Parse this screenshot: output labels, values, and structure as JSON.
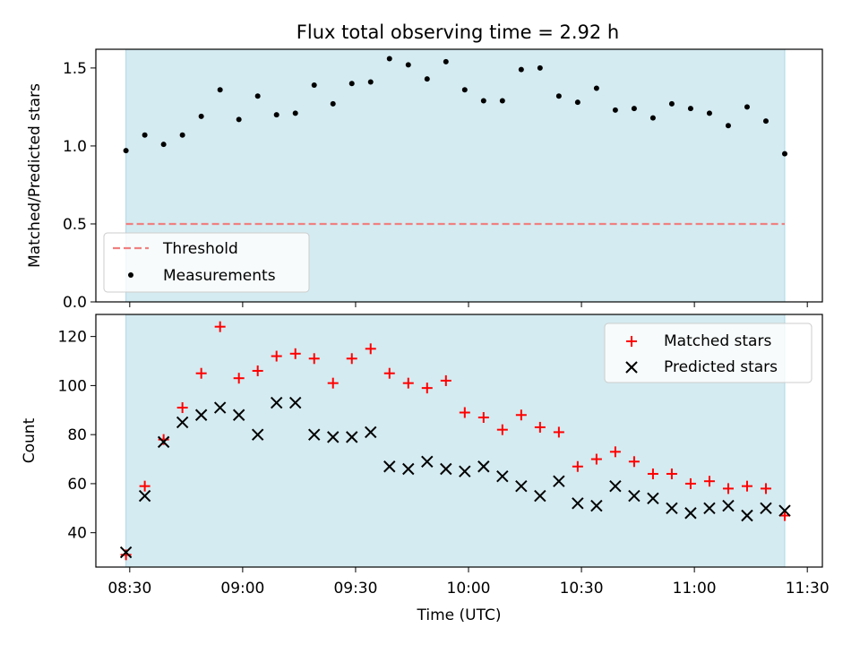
{
  "figure": {
    "title": "Flux total observing time = 2.92 h"
  },
  "chart_data": [
    {
      "type": "scatter",
      "ylabel": "Matched/Predicted stars",
      "xlabel": "",
      "ylim": [
        0,
        1.62
      ],
      "yticks": [
        0,
        0.5,
        1.0,
        1.5
      ],
      "ytick_labels": [
        "0.0",
        "0.5",
        "1.0",
        "1.5"
      ],
      "xlim_min": [
        -8,
        185
      ],
      "shaded_span_min": [
        0,
        175
      ],
      "shade_color": "#d4ebf1",
      "threshold": {
        "name": "Threshold",
        "y": 0.5,
        "x_range_min": [
          0,
          175
        ],
        "color": "#f08080"
      },
      "series": [
        {
          "name": "Measurements",
          "color": "#000000",
          "x_time": [
            "08:29",
            "08:34",
            "08:39",
            "08:44",
            "08:49",
            "08:54",
            "08:59",
            "09:04",
            "09:09",
            "09:14",
            "09:19",
            "09:24",
            "09:29",
            "09:34",
            "09:39",
            "09:44",
            "09:49",
            "09:54",
            "09:59",
            "10:04",
            "10:09",
            "10:14",
            "10:19",
            "10:24",
            "10:29",
            "10:34",
            "10:39",
            "10:44",
            "10:49",
            "10:54",
            "10:59",
            "11:04",
            "11:09",
            "11:14",
            "11:19",
            "11:24"
          ],
          "x_min": [
            0,
            5,
            10,
            15,
            20,
            25,
            30,
            35,
            40,
            45,
            50,
            55,
            60,
            65,
            70,
            75,
            80,
            85,
            90,
            95,
            100,
            105,
            110,
            115,
            120,
            125,
            130,
            135,
            140,
            145,
            150,
            155,
            160,
            165,
            170,
            175
          ],
          "values": [
            0.97,
            1.07,
            1.01,
            1.07,
            1.19,
            1.36,
            1.17,
            1.32,
            1.2,
            1.21,
            1.39,
            1.27,
            1.4,
            1.41,
            1.56,
            1.52,
            1.43,
            1.54,
            1.36,
            1.29,
            1.29,
            1.49,
            1.5,
            1.32,
            1.28,
            1.37,
            1.23,
            1.24,
            1.18,
            1.27,
            1.24,
            1.21,
            1.13,
            1.25,
            1.16,
            0.95
          ]
        }
      ],
      "legend": {
        "placement": "lower-left",
        "entries": [
          "Threshold",
          "Measurements"
        ]
      }
    },
    {
      "type": "scatter",
      "ylabel": "Count",
      "xlabel": "Time (UTC)",
      "ylim": [
        26,
        129
      ],
      "yticks": [
        40,
        60,
        80,
        100,
        120
      ],
      "ytick_labels": [
        "40",
        "60",
        "80",
        "100",
        "120"
      ],
      "xticks_min": [
        1,
        31,
        61,
        91,
        121,
        151,
        181
      ],
      "xtick_labels": [
        "08:30",
        "09:00",
        "09:30",
        "10:00",
        "10:30",
        "11:00",
        "11:30"
      ],
      "xlim_min": [
        -8,
        185
      ],
      "shaded_span_min": [
        0,
        175
      ],
      "shade_color": "#d4ebf1",
      "series": [
        {
          "name": "Matched stars",
          "marker": "+",
          "color": "#ff0000",
          "x_min": [
            0,
            5,
            10,
            15,
            20,
            25,
            30,
            35,
            40,
            45,
            50,
            55,
            60,
            65,
            70,
            75,
            80,
            85,
            90,
            95,
            100,
            105,
            110,
            115,
            120,
            125,
            130,
            135,
            140,
            145,
            150,
            155,
            160,
            165,
            170,
            175
          ],
          "values": [
            31,
            59,
            78,
            91,
            105,
            124,
            103,
            106,
            112,
            113,
            111,
            101,
            111,
            115,
            105,
            101,
            99,
            102,
            89,
            87,
            82,
            88,
            83,
            81,
            67,
            70,
            73,
            69,
            64,
            64,
            60,
            61,
            58,
            59,
            58,
            47
          ]
        },
        {
          "name": "Predicted stars",
          "marker": "x",
          "color": "#000000",
          "x_min": [
            0,
            5,
            10,
            15,
            20,
            25,
            30,
            35,
            40,
            45,
            50,
            55,
            60,
            65,
            70,
            75,
            80,
            85,
            90,
            95,
            100,
            105,
            110,
            115,
            120,
            125,
            130,
            135,
            140,
            145,
            150,
            155,
            160,
            165,
            170,
            175
          ],
          "values": [
            32,
            55,
            77,
            85,
            88,
            91,
            88,
            80,
            93,
            93,
            80,
            79,
            79,
            81,
            67,
            66,
            69,
            66,
            65,
            67,
            63,
            59,
            55,
            61,
            52,
            51,
            59,
            55,
            54,
            50,
            48,
            50,
            51,
            47,
            50,
            49
          ]
        }
      ],
      "legend": {
        "placement": "upper-right",
        "entries": [
          "Matched stars",
          "Predicted stars"
        ]
      }
    }
  ]
}
